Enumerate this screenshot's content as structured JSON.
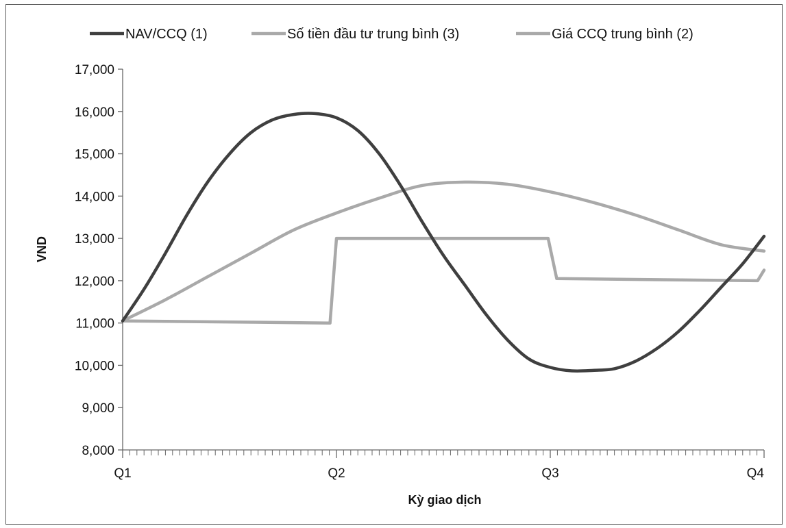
{
  "chart_data": {
    "type": "line",
    "title": "",
    "xlabel": "Kỳ giao dịch",
    "ylabel": "VND",
    "ylim": [
      8000,
      17000
    ],
    "yticks": [
      8000,
      9000,
      10000,
      11000,
      12000,
      13000,
      14000,
      15000,
      16000,
      17000
    ],
    "ytick_labels": [
      "8,000",
      "9,000",
      "10,000",
      "11,000",
      "12,000",
      "13,000",
      "14,000",
      "15,000",
      "16,000",
      "17,000"
    ],
    "categories": [
      "Q1",
      "Q2",
      "Q3",
      "Q4"
    ],
    "xlim": [
      0,
      3
    ],
    "minor_ticks_per_quarter": 30,
    "grid": false,
    "legend_position": "top",
    "series": [
      {
        "name": "NAV/CCQ (1)",
        "color": "#3f3f3f",
        "x": [
          0,
          0.1,
          0.2,
          0.3,
          0.4,
          0.5,
          0.6,
          0.7,
          0.8,
          0.9,
          1.0,
          1.1,
          1.2,
          1.3,
          1.4,
          1.5,
          1.6,
          1.7,
          1.8,
          1.9,
          2.0,
          2.1,
          2.2,
          2.3,
          2.4,
          2.5,
          2.6,
          2.7,
          2.8,
          2.9,
          3.0
        ],
        "y": [
          11050,
          11800,
          12650,
          13550,
          14350,
          15000,
          15500,
          15800,
          15930,
          15950,
          15850,
          15550,
          15000,
          14250,
          13400,
          12600,
          11900,
          11200,
          10600,
          10150,
          9950,
          9870,
          9880,
          9920,
          10100,
          10400,
          10800,
          11300,
          11850,
          12400,
          13050
        ]
      },
      {
        "name": "Số tiền đầu tư trung bình (3)",
        "color": "#a9a9a9",
        "x": [
          0,
          0.2,
          0.4,
          0.6,
          0.8,
          1.0,
          1.2,
          1.4,
          1.6,
          1.8,
          2.0,
          2.2,
          2.4,
          2.6,
          2.8,
          3.0
        ],
        "y": [
          11050,
          11550,
          12100,
          12650,
          13200,
          13600,
          13950,
          14250,
          14330,
          14280,
          14100,
          13850,
          13550,
          13200,
          12850,
          12700
        ]
      },
      {
        "name": "Giá CCQ trung bình (2)",
        "color": "#a9a9a9",
        "x": [
          0,
          0.97,
          1.0,
          1.99,
          2.03,
          2.97,
          3.0
        ],
        "y": [
          11050,
          11000,
          13000,
          13000,
          12050,
          12000,
          12250
        ]
      }
    ]
  }
}
